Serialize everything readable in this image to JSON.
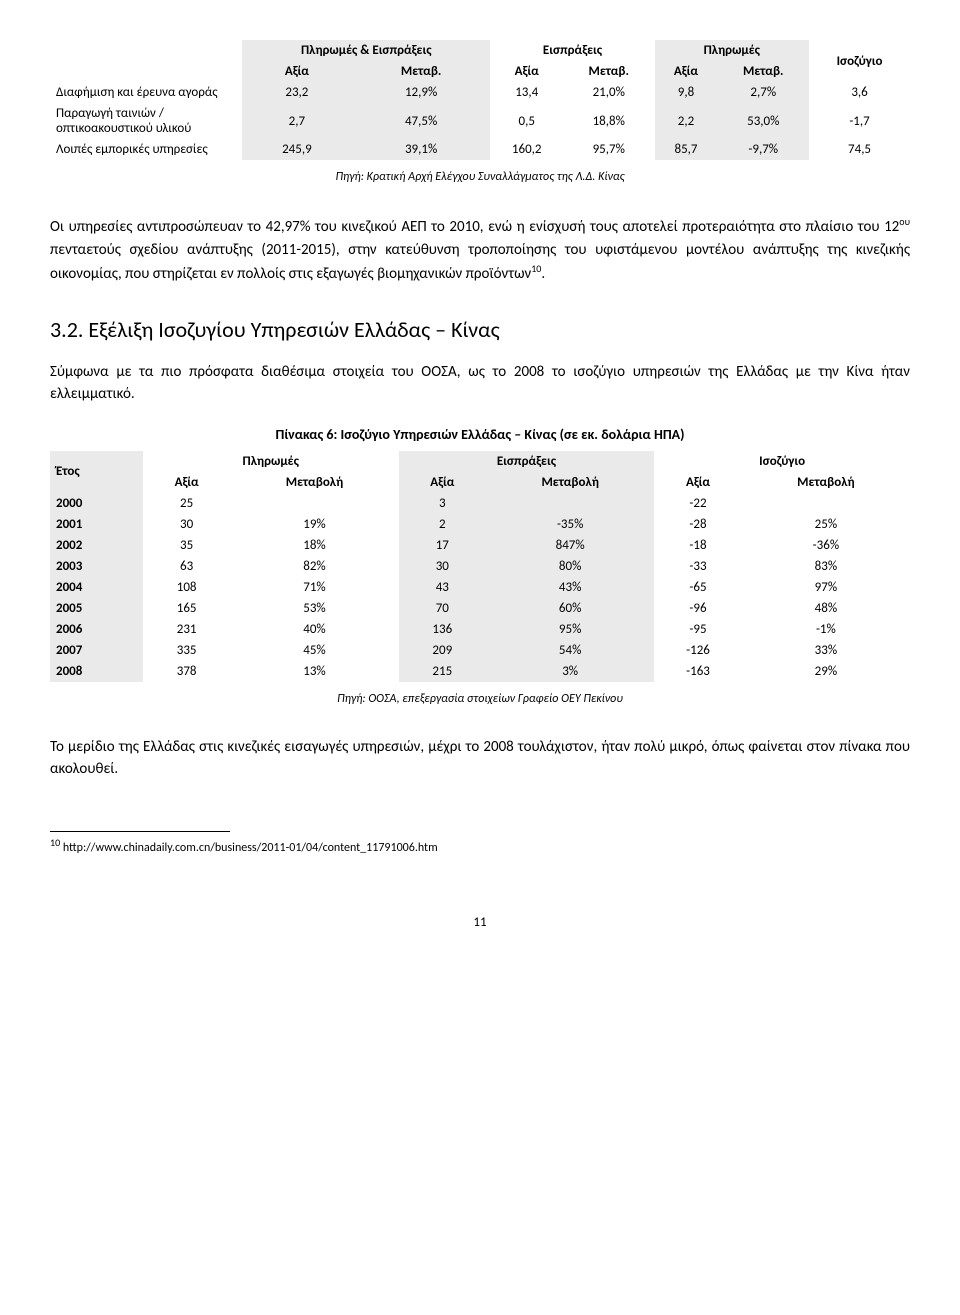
{
  "table1": {
    "headers": {
      "group1": "Πληρωμές & Εισπράξεις",
      "group2": "Εισπράξεις",
      "group3": "Πληρωμές",
      "group4": "Ισοζύγιο",
      "value": "Αξία",
      "change": "Μεταβ."
    },
    "rows": [
      {
        "label": "Διαφήμιση και έρευνα αγοράς",
        "v": [
          "23,2",
          "12,9%",
          "13,4",
          "21,0%",
          "9,8",
          "2,7%",
          "3,6"
        ]
      },
      {
        "label": "Παραγωγή ταινιών /οπτικοακουστικού υλικού",
        "v": [
          "2,7",
          "47,5%",
          "0,5",
          "18,8%",
          "2,2",
          "53,0%",
          "-1,7"
        ]
      },
      {
        "label": "Λοιπές εμπορικές υπηρεσίες",
        "v": [
          "245,9",
          "39,1%",
          "160,2",
          "95,7%",
          "85,7",
          "-9,7%",
          "74,5"
        ]
      }
    ],
    "source": "Πηγή: Κρατική Αρχή Ελέγχου Συναλλάγματος της Λ.Δ. Κίνας"
  },
  "para1_a": "Οι υπηρεσίες αντιπροσώπευαν το 42,97% του κινεζικού ΑΕΠ το 2010, ενώ η ενίσχυσή τους αποτελεί προτεραιότητα στο πλαίσιο του 12",
  "para1_sup1": "ου",
  "para1_b": " πενταετούς σχεδίου ανάπτυξης (2011-2015), στην κατεύθυνση τροποποίησης του υφιστάμενου μοντέλου ανάπτυξης της κινεζικής οικονομίας, που στηρίζεται εν πολλοίς στις εξαγωγές βιομηχανικών προϊόντων",
  "para1_sup2": "10",
  "para1_c": ".",
  "section_title": "3.2. Εξέλιξη Ισοζυγίου Υπηρεσιών Ελλάδας – Κίνας",
  "para2": "Σύμφωνα με τα πιο πρόσφατα διαθέσιμα στοιχεία του ΟΟΣΑ, ως το 2008 το ισοζύγιο υπηρεσιών της Ελλάδας με την Κίνα ήταν ελλειμματικό.",
  "table2": {
    "caption": "Πίνακας 6: Ισοζύγιο Υπηρεσιών Ελλάδας – Κίνας (σε εκ. δολάρια ΗΠΑ)",
    "headers": {
      "year": "Έτος",
      "payments": "Πληρωμές",
      "receipts": "Εισπράξεις",
      "balance": "Ισοζύγιο",
      "value": "Αξία",
      "change": "Μεταβολή"
    },
    "rows": [
      {
        "y": "2000",
        "v": [
          "25",
          "",
          "3",
          "",
          "-22",
          ""
        ]
      },
      {
        "y": "2001",
        "v": [
          "30",
          "19%",
          "2",
          "-35%",
          "-28",
          "25%"
        ]
      },
      {
        "y": "2002",
        "v": [
          "35",
          "18%",
          "17",
          "847%",
          "-18",
          "-36%"
        ]
      },
      {
        "y": "2003",
        "v": [
          "63",
          "82%",
          "30",
          "80%",
          "-33",
          "83%"
        ]
      },
      {
        "y": "2004",
        "v": [
          "108",
          "71%",
          "43",
          "43%",
          "-65",
          "97%"
        ]
      },
      {
        "y": "2005",
        "v": [
          "165",
          "53%",
          "70",
          "60%",
          "-96",
          "48%"
        ]
      },
      {
        "y": "2006",
        "v": [
          "231",
          "40%",
          "136",
          "95%",
          "-95",
          "-1%"
        ]
      },
      {
        "y": "2007",
        "v": [
          "335",
          "45%",
          "209",
          "54%",
          "-126",
          "33%"
        ]
      },
      {
        "y": "2008",
        "v": [
          "378",
          "13%",
          "215",
          "3%",
          "-163",
          "29%"
        ]
      }
    ],
    "source": "Πηγή: ΟΟΣΑ, επεξεργασία στοιχείων Γραφείο ΟΕΥ Πεκίνου"
  },
  "para3": "Το μερίδιο της Ελλάδας στις κινεζικές εισαγωγές υπηρεσιών, μέχρι το 2008 τουλάχιστον, ήταν πολύ μικρό, όπως φαίνεται στον πίνακα που ακολουθεί.",
  "footnote_num": "10",
  "footnote_text": " http://www.chinadaily.com.cn/business/2011-01/04/content_11791006.htm",
  "page_number": "11"
}
